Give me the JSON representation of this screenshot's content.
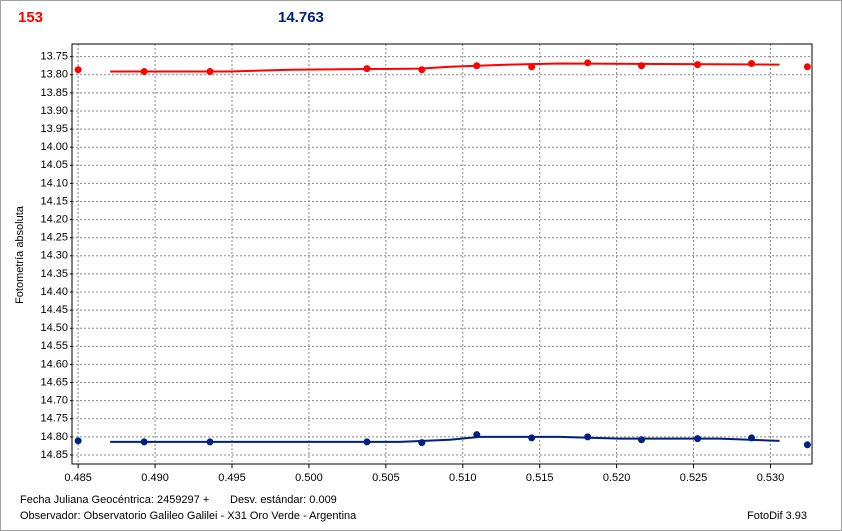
{
  "header": {
    "left": "153",
    "right": "14.763"
  },
  "footer": {
    "date_label": "Fecha Juliana Geocéntrica: 2459297 +",
    "std_label": "Desv. estándar: 0.009",
    "observer": "Observador: Observatorio Galileo Galilei - X31 Oro Verde - Argentina",
    "software": "FotoDif 3.93"
  },
  "chart_data": {
    "type": "scatter",
    "y_label": "Fotometría absoluta",
    "xlim": [
      0.4846,
      0.5327
    ],
    "ylim": [
      13.715,
      14.875
    ],
    "invert_y": true,
    "grid": true,
    "xticks": [
      0.485,
      {
        "value": 0.49,
        "label": "0.490"
      },
      0.495,
      {
        "value": 0.5,
        "label": "0.500"
      },
      0.505,
      {
        "value": 0.51,
        "label": "0.510"
      },
      0.515,
      {
        "value": 0.52,
        "label": "0.520"
      },
      0.525,
      {
        "value": 0.53,
        "label": "0.530"
      }
    ],
    "yticks": [
      13.75,
      {
        "value": 13.8,
        "label": "13.80"
      },
      13.85,
      {
        "value": 13.9,
        "label": "13.90"
      },
      13.95,
      {
        "value": 14.0,
        "label": "14.00"
      },
      14.05,
      {
        "value": 14.1,
        "label": "14.10"
      },
      14.15,
      {
        "value": 14.2,
        "label": "14.20"
      },
      14.25,
      {
        "value": 14.3,
        "label": "14.30"
      },
      14.35,
      {
        "value": 14.4,
        "label": "14.40"
      },
      14.45,
      {
        "value": 14.5,
        "label": "14.50"
      },
      14.55,
      {
        "value": 14.6,
        "label": "14.60"
      },
      14.65,
      {
        "value": 14.7,
        "label": "14.70"
      },
      14.75,
      {
        "value": 14.8,
        "label": "14.80"
      },
      14.85
    ],
    "series": [
      {
        "mode": "markers",
        "color": "#ff0000",
        "x": [
          0.485,
          0.48929,
          0.49357,
          0.50377,
          0.50734,
          0.51091,
          0.51448,
          0.51812,
          0.52162,
          0.52526,
          0.52877,
          0.5324
        ],
        "values": [
          13.786,
          13.791,
          13.791,
          13.783,
          13.786,
          13.775,
          13.778,
          13.767,
          13.775,
          13.772,
          13.769,
          13.778
        ]
      },
      {
        "mode": "line",
        "color": "#ff0000",
        "x": [
          0.48708,
          0.49487,
          0.49877,
          0.50721,
          0.50916,
          0.51305,
          0.5163,
          0.53059
        ],
        "values": [
          13.791,
          13.791,
          13.786,
          13.783,
          13.778,
          13.772,
          13.769,
          13.772
        ]
      },
      {
        "mode": "markers",
        "color": "#00207f",
        "x": [
          0.485,
          0.48929,
          0.49357,
          0.50377,
          0.50734,
          0.51091,
          0.51448,
          0.51812,
          0.52162,
          0.52526,
          0.52877,
          0.5324
        ],
        "values": [
          14.811,
          14.814,
          14.814,
          14.814,
          14.816,
          14.794,
          14.803,
          14.8,
          14.808,
          14.805,
          14.803,
          14.822
        ]
      },
      {
        "mode": "line",
        "color": "#00207f",
        "x": [
          0.48708,
          0.50591,
          0.50916,
          0.51111,
          0.5163,
          0.5202,
          0.52669,
          0.53059
        ],
        "values": [
          14.814,
          14.814,
          14.808,
          14.8,
          14.8,
          14.805,
          14.805,
          14.811
        ]
      }
    ]
  }
}
